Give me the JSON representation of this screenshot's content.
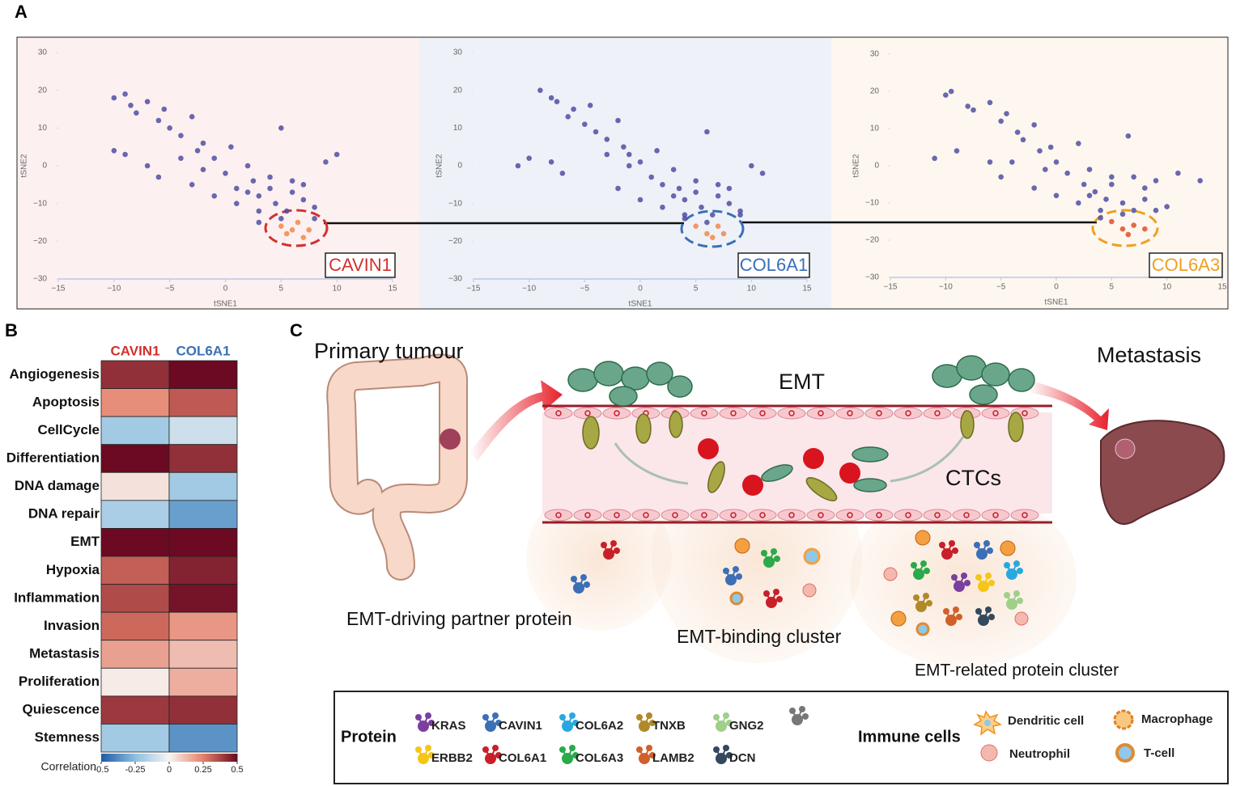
{
  "panel_labels": [
    "A",
    "B",
    "C"
  ],
  "chart_data": [
    {
      "type": "scatter",
      "xlabel": "tSNE1",
      "ylabel": "tSNE2",
      "gene_label": "CAVIN1",
      "gene_color": "#d0312d",
      "xlim": [
        -15,
        15
      ],
      "ylim": [
        -30,
        30
      ],
      "xticks": [
        {
          "value": -15,
          "label": "−15"
        },
        {
          "value": -10,
          "label": "−10"
        },
        {
          "value": -5,
          "label": "−5"
        },
        0,
        5,
        10,
        15
      ],
      "yticks": [
        {
          "value": -30,
          "label": "−30"
        },
        {
          "value": -20,
          "label": "−20"
        },
        {
          "value": -10,
          "label": "−10"
        },
        0,
        10,
        20,
        30
      ],
      "series": [
        {
          "color": "#4f4fa3",
          "x": [
            -10,
            -9,
            -8.5,
            -8,
            -7,
            -6,
            -5.5,
            -5,
            -4,
            -3,
            -2.5,
            -2,
            -1,
            0,
            0.5,
            1,
            2,
            2.5,
            3,
            4,
            4.5,
            5,
            5.5,
            6,
            7,
            8,
            9,
            10,
            -9,
            -7,
            -6,
            -3,
            -1,
            1,
            3,
            5,
            7,
            -4,
            -2,
            2,
            4,
            6,
            3,
            8,
            -10
          ],
          "y": [
            18,
            19,
            16,
            14,
            17,
            12,
            15,
            10,
            8,
            13,
            4,
            6,
            2,
            -2,
            5,
            -6,
            0,
            -4,
            -8,
            -3,
            -10,
            10,
            -12,
            -7,
            -5,
            -11,
            1,
            3,
            3,
            0,
            -3,
            -5,
            -8,
            -10,
            -12,
            -14,
            -9,
            2,
            -1,
            -7,
            -6,
            -4,
            -15,
            -14,
            4
          ]
        },
        {
          "color": "#f08a4b",
          "x": [
            5,
            6,
            6.5,
            7.5,
            5.5,
            7
          ],
          "y": [
            -16,
            -17,
            -15,
            -17,
            -18,
            -19
          ]
        }
      ]
    },
    {
      "type": "scatter",
      "xlabel": "tSNE1",
      "ylabel": "tSNE2",
      "gene_label": "COL6A1",
      "gene_color": "#3b6fb6",
      "xlim": [
        -15,
        15
      ],
      "ylim": [
        -30,
        30
      ],
      "xticks": [
        {
          "value": -15,
          "label": "−15"
        },
        {
          "value": -10,
          "label": "−10"
        },
        {
          "value": -5,
          "label": "−5"
        },
        0,
        5,
        10,
        15
      ],
      "yticks": [
        {
          "value": -30,
          "label": "−30"
        },
        {
          "value": -20,
          "label": "−20"
        },
        {
          "value": -10,
          "label": "−10"
        },
        0,
        10,
        20,
        30
      ],
      "series": [
        {
          "color": "#4f4fa3",
          "x": [
            -9,
            -8,
            -7.5,
            -6,
            -6.5,
            -5,
            -4.5,
            -4,
            -3,
            -2,
            -1.5,
            -1,
            0,
            1,
            1.5,
            2,
            3,
            3.5,
            4,
            5,
            5.5,
            6,
            6.5,
            7,
            8,
            9,
            10,
            11,
            -10,
            -8,
            -7,
            -2,
            0,
            2,
            4,
            6,
            8,
            -3,
            -1,
            3,
            5,
            7,
            4,
            9,
            -11
          ],
          "y": [
            20,
            18,
            17,
            15,
            13,
            11,
            16,
            9,
            7,
            12,
            5,
            3,
            1,
            -3,
            4,
            -5,
            -1,
            -6,
            -9,
            -4,
            -11,
            9,
            -13,
            -8,
            -6,
            -12,
            0,
            -2,
            2,
            1,
            -2,
            -6,
            -9,
            -11,
            -13,
            -15,
            -10,
            3,
            0,
            -8,
            -7,
            -5,
            -14,
            -13,
            0
          ]
        },
        {
          "color": "#f08a4b",
          "x": [
            5,
            6,
            7,
            7.5,
            6.5
          ],
          "y": [
            -16,
            -18,
            -16,
            -18,
            -19
          ]
        }
      ]
    },
    {
      "type": "scatter",
      "xlabel": "tSNE1",
      "ylabel": "tSNE2",
      "gene_label": "COL6A3",
      "gene_color": "#f0a020",
      "xlim": [
        -15,
        15
      ],
      "ylim": [
        -30,
        30
      ],
      "xticks": [
        {
          "value": -15,
          "label": "−15"
        },
        {
          "value": -10,
          "label": "−10"
        },
        {
          "value": -5,
          "label": "−5"
        },
        0,
        5,
        10,
        15
      ],
      "yticks": [
        {
          "value": -30,
          "label": "−30"
        },
        {
          "value": -20,
          "label": "−20"
        },
        {
          "value": -10,
          "label": "−10"
        },
        0,
        10,
        20,
        30
      ],
      "series": [
        {
          "color": "#4f4fa3",
          "x": [
            -10,
            -9.5,
            -8,
            -7.5,
            -6,
            -5,
            -4.5,
            -3.5,
            -3,
            -2,
            -1.5,
            -0.5,
            0,
            1,
            2,
            2.5,
            3,
            3.5,
            4.5,
            5,
            6,
            6.5,
            7,
            8,
            9,
            10,
            11,
            13,
            -9,
            -6,
            -5,
            -2,
            0,
            2,
            4,
            6,
            8,
            -4,
            -1,
            3,
            5,
            7,
            4,
            9,
            -11
          ],
          "y": [
            19,
            20,
            16,
            15,
            17,
            12,
            14,
            9,
            7,
            11,
            4,
            5,
            1,
            -2,
            6,
            -5,
            -1,
            -7,
            -9,
            -3,
            -10,
            8,
            -12,
            -6,
            -4,
            -11,
            -2,
            -4,
            4,
            1,
            -3,
            -6,
            -8,
            -10,
            -12,
            -13,
            -9,
            1,
            -1,
            -8,
            -5,
            -3,
            -14,
            -12,
            2
          ]
        },
        {
          "color": "#e0502a",
          "x": [
            5,
            6,
            7,
            6.5,
            8
          ],
          "y": [
            -15,
            -17,
            -16,
            -18.5,
            -17
          ]
        }
      ]
    },
    {
      "type": "heatmap",
      "columns": [
        "CAVIN1",
        "COL6A1"
      ],
      "column_colors": [
        "#d0312d",
        "#3b6fb6"
      ],
      "rows": [
        "Angiogenesis",
        "Apoptosis",
        "CellCycle",
        "Differentiation",
        "DNA damage",
        "DNA repair",
        "EMT",
        "Hypoxia",
        "Inflammation",
        "Invasion",
        "Metastasis",
        "Proliferation",
        "Quiescence",
        "Stemness"
      ],
      "values": [
        [
          0.42,
          0.5
        ],
        [
          0.22,
          0.33
        ],
        [
          -0.2,
          -0.1
        ],
        [
          0.5,
          0.42
        ],
        [
          0.04,
          -0.2
        ],
        [
          -0.18,
          -0.33
        ],
        [
          0.5,
          0.5
        ],
        [
          0.32,
          0.45
        ],
        [
          0.36,
          0.48
        ],
        [
          0.3,
          0.2
        ],
        [
          0.18,
          0.12
        ],
        [
          0.02,
          0.15
        ],
        [
          0.4,
          0.42
        ],
        [
          -0.2,
          -0.36
        ]
      ],
      "colorbar_label": "Correlation",
      "clim": [
        -0.5,
        0.5
      ],
      "cticks": [
        -0.5,
        -0.25,
        0,
        0.25,
        0.5
      ],
      "colormap": [
        "#1f5aa6",
        "#8cbfe0",
        "#f8f4f2",
        "#e5806a",
        "#6b0a22"
      ]
    }
  ],
  "diagram": {
    "primary": "Primary tumour",
    "metastasis": "Metastasis",
    "emt": "EMT",
    "ctcs": "CTCs",
    "driving": "EMT-driving partner protein",
    "binding": "EMT-binding cluster",
    "related": "EMT-related protein cluster"
  },
  "legend": {
    "protein_title": "Protein",
    "proteins": [
      {
        "label": "KRAS",
        "color": "#7b3fa0"
      },
      {
        "label": "CAVIN1",
        "color": "#3b6fb6"
      },
      {
        "label": "COL6A2",
        "color": "#29a8e0"
      },
      {
        "label": "TNXB",
        "color": "#b08a2a"
      },
      {
        "label": "GNG2",
        "color": "#9fd08a"
      },
      {
        "color": "#777777"
      },
      {
        "label": "ERBB2",
        "color": "#f5c518"
      },
      {
        "label": "COL6A1",
        "color": "#c8202a"
      },
      {
        "label": "COL6A3",
        "color": "#2aaa4a"
      },
      {
        "label": "LAMB2",
        "color": "#d0602a"
      },
      {
        "label": "DCN",
        "color": "#34495e"
      }
    ],
    "immune_title": "Immune cells",
    "cells": [
      "Dendritic cell",
      "Macrophage",
      "Neutrophil",
      "T-cell"
    ]
  }
}
